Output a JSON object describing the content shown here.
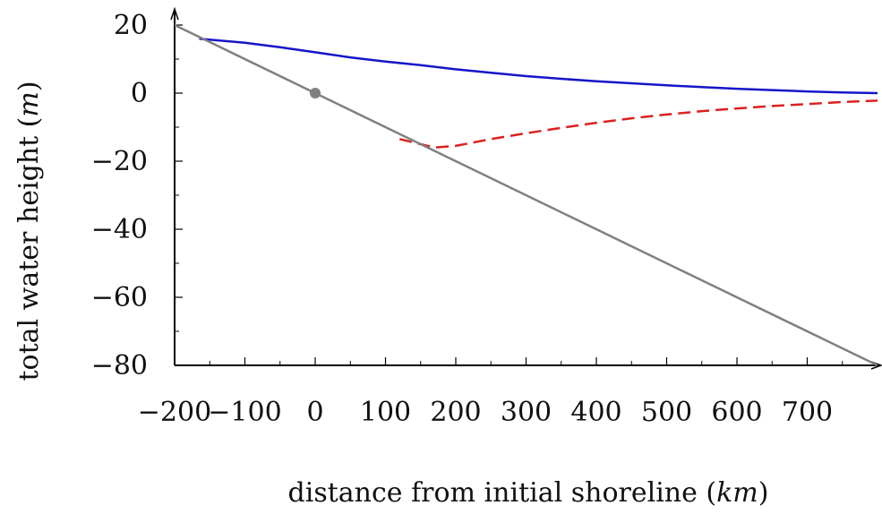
{
  "chart_data": {
    "type": "line",
    "xlabel": "distance from initial shoreline",
    "xunit": "km",
    "ylabel": "total water height",
    "yunit": "m",
    "xlim": [
      -200,
      800
    ],
    "ylim": [
      -80,
      25
    ],
    "xticks": [
      -200,
      -100,
      0,
      100,
      200,
      300,
      400,
      500,
      600,
      700
    ],
    "yticks": [
      20,
      0,
      -20,
      -40,
      -60,
      -80
    ],
    "grid": false,
    "colors": {
      "solid": "#1515c8",
      "dashed": "#dd2020",
      "bathymetry": "#808080"
    },
    "series": [
      {
        "style": "solid",
        "color": "#1515c8",
        "x": [
          -165,
          -100,
          -50,
          0,
          50,
          100,
          150,
          200,
          250,
          300,
          350,
          400,
          450,
          500,
          550,
          600,
          650,
          700,
          750,
          800
        ],
        "y": [
          16,
          14.8,
          13.5,
          12,
          10.5,
          9.3,
          8.2,
          7.0,
          6.0,
          5.0,
          4.2,
          3.5,
          2.9,
          2.3,
          1.8,
          1.3,
          0.9,
          0.5,
          0.2,
          0
        ]
      },
      {
        "style": "dashed",
        "color": "#dd2020",
        "x": [
          120,
          150,
          170,
          200,
          250,
          300,
          350,
          400,
          450,
          500,
          550,
          600,
          650,
          700,
          750,
          800
        ],
        "y": [
          -13.5,
          -15,
          -16,
          -15.5,
          -13.5,
          -11.8,
          -10.2,
          -8.7,
          -7.4,
          -6.3,
          -5.3,
          -4.5,
          -3.8,
          -3.2,
          -2.6,
          -2.2
        ]
      },
      {
        "style": "bathymetry",
        "color": "#808080",
        "x": [
          -200,
          800
        ],
        "y": [
          20,
          -80
        ]
      }
    ],
    "marker": {
      "x": 0,
      "y": 0,
      "color": "#808080"
    }
  }
}
